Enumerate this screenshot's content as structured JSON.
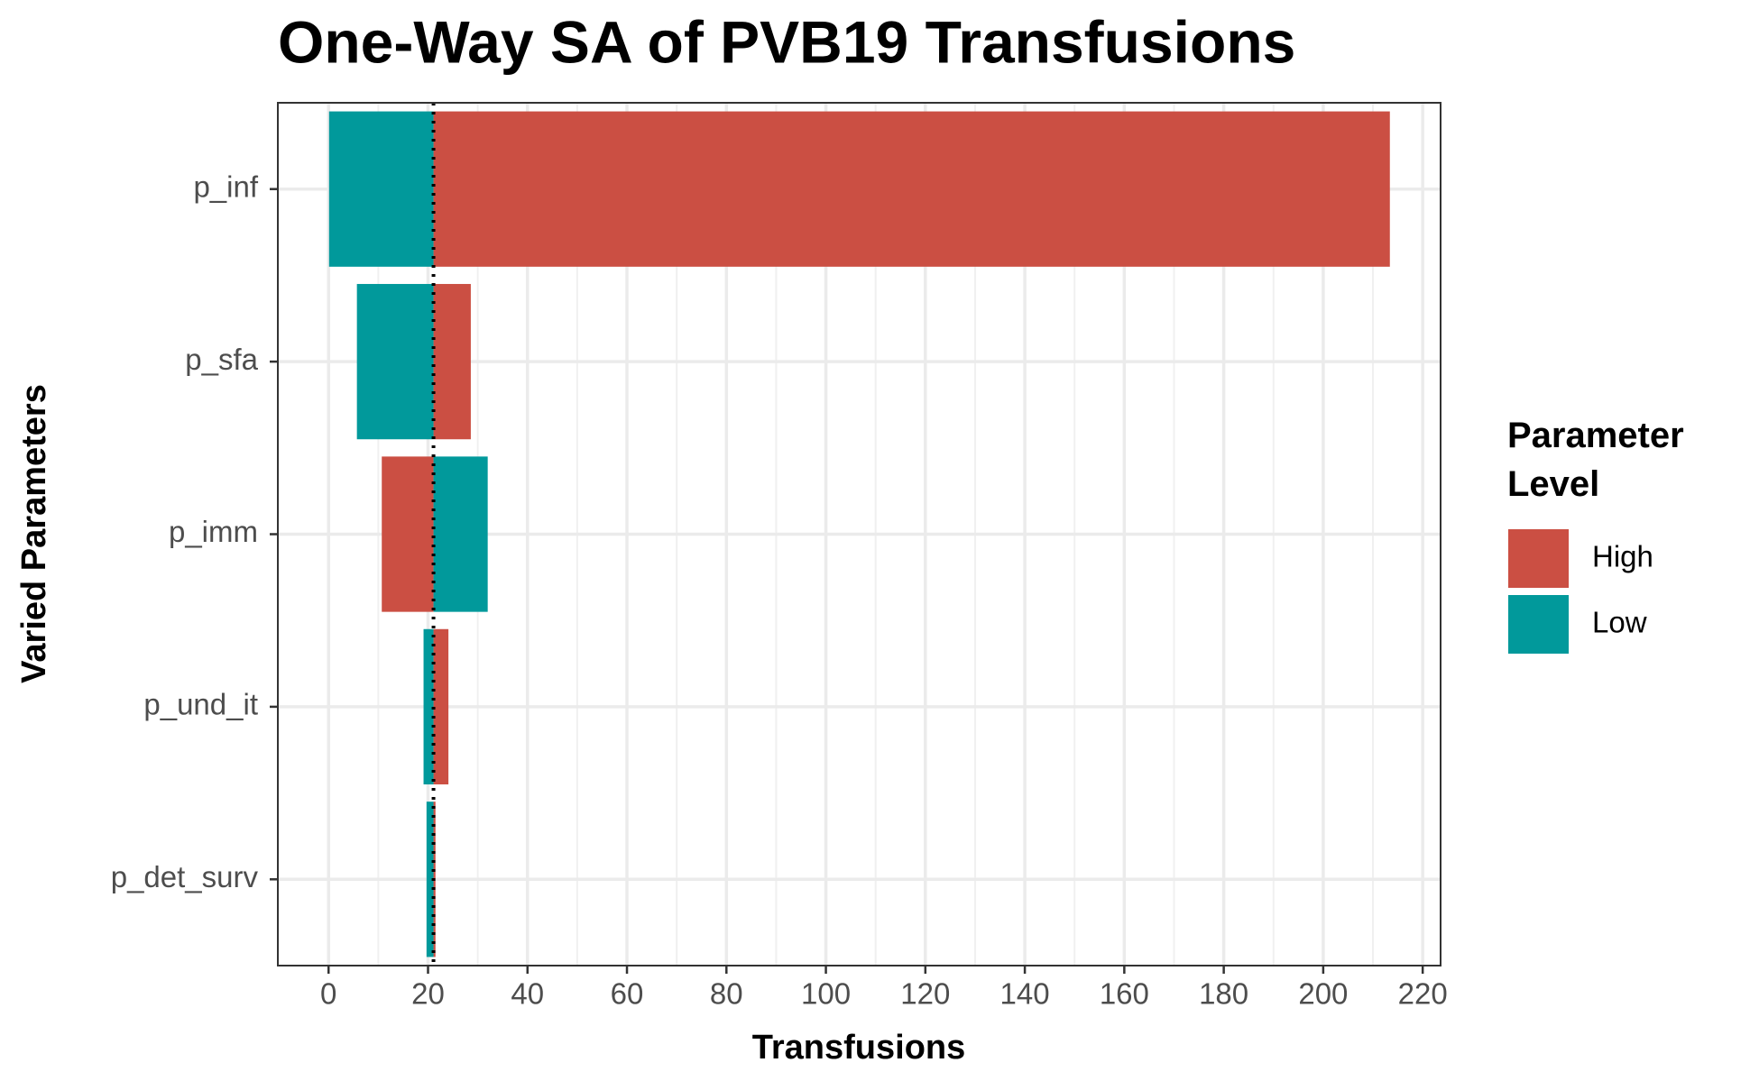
{
  "chart_data": {
    "type": "tornado",
    "title": "One-Way SA of PVB19 Transfusions",
    "x_label": "Transfusions",
    "y_label": "Varied Parameters",
    "legend_title": "Parameter Level",
    "categories": [
      "p_inf",
      "p_sfa",
      "p_imm",
      "p_und_it",
      "p_det_surv"
    ],
    "series": [
      {
        "name": "High",
        "color": "#cb4f43",
        "values": [
          213.4,
          28.6,
          10.7,
          24.1,
          21.5
        ]
      },
      {
        "name": "Low",
        "color": "#01999b",
        "values": [
          0.1,
          5.7,
          32.0,
          19.1,
          19.7
        ]
      }
    ],
    "baseline": 21.1,
    "xlim": [
      -10.2,
      223.6
    ],
    "xticks": [
      0,
      20,
      40,
      60,
      80,
      100,
      120,
      140,
      160,
      180,
      200,
      220
    ],
    "grid": true,
    "legend_position": "right"
  }
}
